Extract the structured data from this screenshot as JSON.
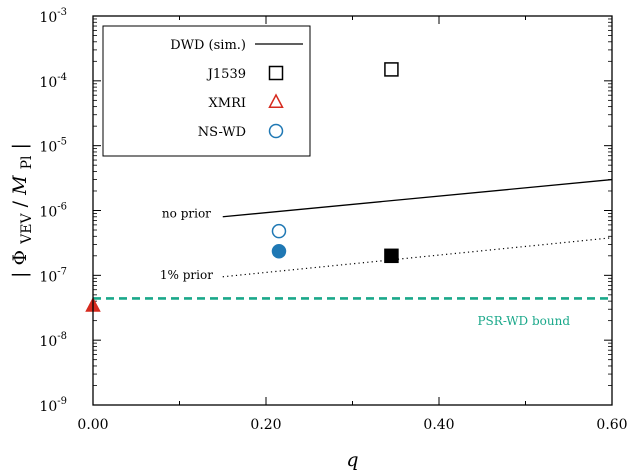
{
  "chart_data": {
    "type": "scatter",
    "xlabel": "q",
    "ylabel_parts": {
      "open": "|",
      "phi": "Φ",
      "phi_sub": "VEV",
      "slash": "/",
      "m": "M",
      "m_sub": "Pl",
      "close": "|"
    },
    "xlim": [
      0,
      0.6
    ],
    "ylim": [
      1e-09,
      0.001
    ],
    "y_scale": "log",
    "x_ticks": [
      {
        "value": 0.0,
        "label": "0.00"
      },
      {
        "value": 0.2,
        "label": "0.20"
      },
      {
        "value": 0.4,
        "label": "0.40"
      },
      {
        "value": 0.6,
        "label": "0.60"
      }
    ],
    "y_ticks": [
      {
        "exp": -9,
        "base": "10",
        "sup": "-9"
      },
      {
        "exp": -8,
        "base": "10",
        "sup": "-8"
      },
      {
        "exp": -7,
        "base": "10",
        "sup": "-7"
      },
      {
        "exp": -6,
        "base": "10",
        "sup": "-6"
      },
      {
        "exp": -5,
        "base": "10",
        "sup": "-5"
      },
      {
        "exp": -4,
        "base": "10",
        "sup": "-4"
      },
      {
        "exp": -3,
        "base": "10",
        "sup": "-3"
      }
    ],
    "lines": [
      {
        "id": "no_prior",
        "style": "solid",
        "color": "#000000",
        "x": [
          0.15,
          0.6
        ],
        "y": [
          8e-07,
          3e-06
        ]
      },
      {
        "id": "one_pct_prior",
        "style": "dotted",
        "color": "#000000",
        "x": [
          0.15,
          0.6
        ],
        "y": [
          9.5e-08,
          3.8e-07
        ]
      },
      {
        "id": "psr_wd",
        "style": "dashed",
        "color": "#1aa88a",
        "x": [
          0,
          0.6
        ],
        "y": [
          4.4e-08,
          4.4e-08
        ]
      }
    ],
    "points": [
      {
        "id": "j1539_open",
        "marker": "square",
        "filled": false,
        "color": "#000000",
        "x": 0.345,
        "y": 0.00015
      },
      {
        "id": "j1539_filled",
        "marker": "square",
        "filled": true,
        "color": "#000000",
        "x": 0.345,
        "y": 2e-07
      },
      {
        "id": "nswd_open",
        "marker": "circle",
        "filled": false,
        "color": "#1f78b4",
        "x": 0.215,
        "y": 4.8e-07
      },
      {
        "id": "nswd_filled",
        "marker": "circle",
        "filled": true,
        "color": "#1f78b4",
        "x": 0.215,
        "y": 2.35e-07
      },
      {
        "id": "xmri_filled",
        "marker": "triangle",
        "filled": true,
        "color": "#d62a1e",
        "x": 0.0,
        "y": 3.4e-08
      }
    ],
    "annotations": [
      {
        "id": "no_prior_label",
        "text": "no prior",
        "x": 0.108,
        "y": 7.8e-07,
        "color": "#000000"
      },
      {
        "id": "one_pct_label",
        "text": "1% prior",
        "x": 0.108,
        "y": 8.8e-08,
        "color": "#000000"
      },
      {
        "id": "psr_label",
        "text": "PSR-WD bound",
        "x": 0.498,
        "y": 1.7e-08,
        "color": "#1aa88a"
      }
    ],
    "legend": {
      "position": "top-left",
      "entries": [
        {
          "label": "DWD (sim.)",
          "marker": "line",
          "color": "#000000"
        },
        {
          "label": "J1539",
          "marker": "square",
          "filled": false,
          "color": "#000000"
        },
        {
          "label": "XMRI",
          "marker": "triangle",
          "filled": false,
          "color": "#d62a1e"
        },
        {
          "label": "NS-WD",
          "marker": "circle",
          "filled": false,
          "color": "#1f78b4"
        }
      ]
    }
  }
}
